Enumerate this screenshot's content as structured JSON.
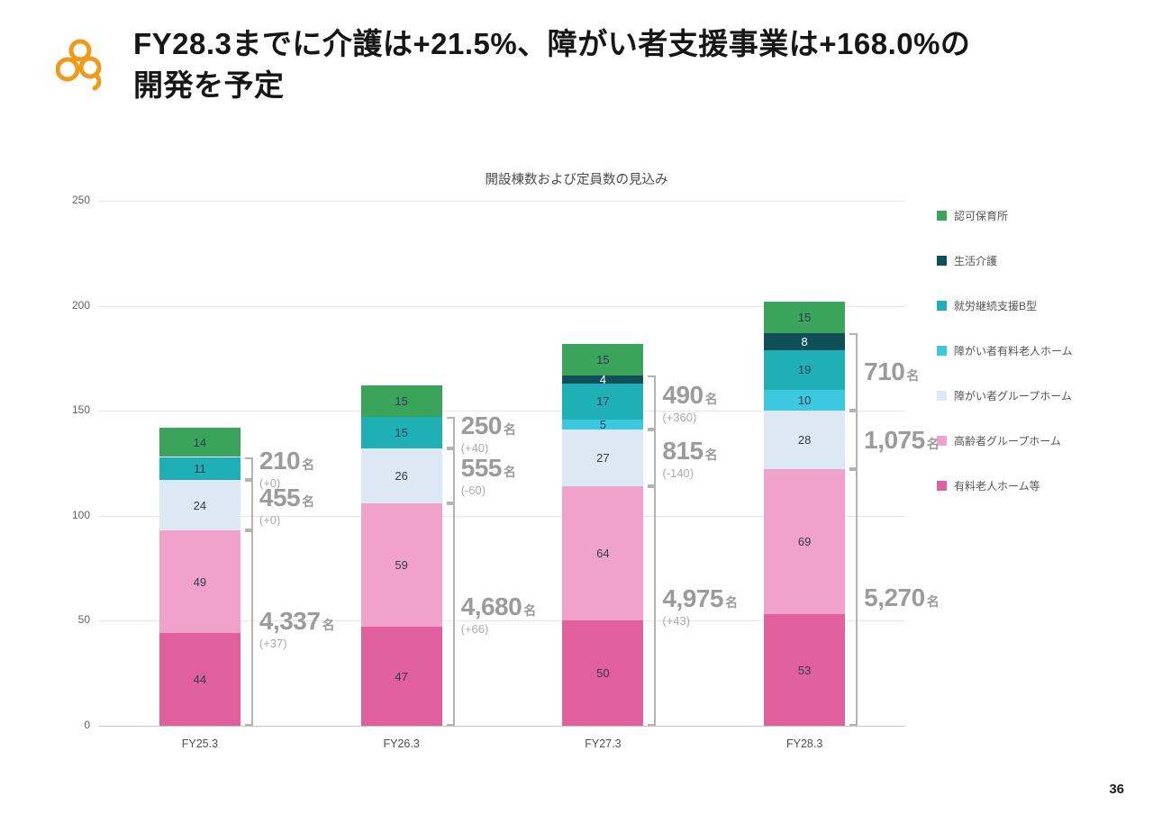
{
  "page": {
    "title_line1": "FY28.3までに介護は+21.5%、障がい者支援事業は+168.0%の",
    "title_line2": "開発を予定",
    "page_number": "36"
  },
  "chart_data": {
    "type": "bar",
    "stacked": true,
    "title": "開設棟数および定員数の見込み",
    "categories": [
      "FY25.3",
      "FY26.3",
      "FY27.3",
      "FY28.3"
    ],
    "xlabel": "",
    "ylabel": "",
    "ylim": [
      0,
      250
    ],
    "yticks": [
      0,
      50,
      100,
      150,
      200,
      250
    ],
    "grid": true,
    "legend_position": "right",
    "series": [
      {
        "name": "有料老人ホーム等",
        "color": "#e0609e",
        "values": [
          44,
          47,
          50,
          53
        ]
      },
      {
        "name": "高齢者グループホーム",
        "color": "#f0a2cb",
        "values": [
          49,
          59,
          64,
          69
        ]
      },
      {
        "name": "障がい者グループホーム",
        "color": "#dce8f4",
        "values": [
          24,
          26,
          27,
          28
        ]
      },
      {
        "name": "障がい者有料老人ホーム",
        "color": "#3cc8de",
        "values": [
          0,
          0,
          5,
          10
        ]
      },
      {
        "name": "就労継続支援B型",
        "color": "#1fb0b6",
        "values": [
          11,
          15,
          17,
          19
        ]
      },
      {
        "name": "生活介護",
        "color": "#104e5a",
        "label_color": "light",
        "values": [
          0,
          0,
          4,
          8
        ]
      },
      {
        "name": "認可保育所",
        "color": "#3aa45a",
        "values": [
          14,
          15,
          15,
          15
        ]
      }
    ],
    "annotations": [
      [
        {
          "value": "210",
          "unit": "名",
          "delta": "(+0)",
          "span": [
            3,
            5
          ]
        },
        {
          "value": "455",
          "unit": "名",
          "delta": "(+0)",
          "span": [
            2,
            2
          ]
        },
        {
          "value": "4,337",
          "unit": "名",
          "delta": "(+37)",
          "span": [
            0,
            1
          ]
        }
      ],
      [
        {
          "value": "250",
          "unit": "名",
          "delta": "(+40)",
          "span": [
            3,
            5
          ]
        },
        {
          "value": "555",
          "unit": "名",
          "delta": "(-60)",
          "span": [
            2,
            2
          ]
        },
        {
          "value": "4,680",
          "unit": "名",
          "delta": "(+66)",
          "span": [
            0,
            1
          ]
        }
      ],
      [
        {
          "value": "490",
          "unit": "名",
          "delta": "(+360)",
          "span": [
            3,
            5
          ]
        },
        {
          "value": "815",
          "unit": "名",
          "delta": "(-140)",
          "span": [
            2,
            2
          ]
        },
        {
          "value": "4,975",
          "unit": "名",
          "delta": "(+43)",
          "span": [
            0,
            1
          ]
        }
      ],
      [
        {
          "value": "710",
          "unit": "名",
          "delta": "",
          "span": [
            3,
            5
          ]
        },
        {
          "value": "1,075",
          "unit": "名",
          "delta": "",
          "span": [
            2,
            2
          ]
        },
        {
          "value": "5,270",
          "unit": "名",
          "delta": "",
          "span": [
            0,
            1
          ]
        }
      ]
    ],
    "logo_color": "#ec9b1d"
  }
}
